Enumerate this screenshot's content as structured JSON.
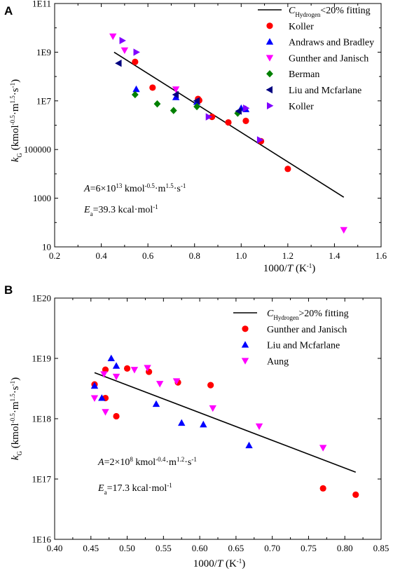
{
  "chart_data": [
    {
      "type": "scatter",
      "panel_label": "A",
      "xlim": [
        0.2,
        1.6
      ],
      "ylim": [
        10,
        100000000000.0
      ],
      "yscale": "log",
      "xticks": [
        "0.2",
        "0.4",
        "0.6",
        "0.8",
        "1.0",
        "1.2",
        "1.4",
        "1.6"
      ],
      "yticks": [
        "10",
        "1000",
        "100000",
        "1E7",
        "1E9",
        "1E11"
      ],
      "ytick_values": [
        10.0,
        1000.0,
        100000.0,
        10000000.0,
        1000000000.0,
        100000000000.0
      ],
      "xlabel": "1000/T (K⁻¹)",
      "ylabel": "kG (kmol-0.5·m1.5·s-1)",
      "legend": "top-right",
      "fit": {
        "name": "CHydrogen<20% fitting",
        "x": [
          0.455,
          1.44
        ],
        "y": [
          1000000000.0,
          1100.0
        ]
      },
      "series": [
        {
          "name": "Koller",
          "marker": "circle",
          "color": "#ff0000",
          "x": [
            0.545,
            0.62,
            0.815,
            0.82,
            0.875,
            0.945,
            1.02,
            1.085,
            1.2
          ],
          "y": [
            400000000.0,
            35000000.0,
            12000000.0,
            10500000.0,
            2200000.0,
            1300000.0,
            1500000.0,
            220000.0,
            16000.0
          ]
        },
        {
          "name": "Andraws and Bradley",
          "marker": "triangle-up",
          "color": "#0000ff",
          "x": [
            0.55,
            0.72,
            0.81,
            1.0,
            1.02
          ],
          "y": [
            30000000.0,
            14000000.0,
            9000000.0,
            5000000.0,
            4500000.0
          ]
        },
        {
          "name": "Gunther and Janisch",
          "marker": "triangle-down",
          "color": "#ff00ff",
          "x": [
            0.45,
            0.5,
            0.72,
            1.44
          ],
          "y": [
            4500000000.0,
            1200000000.0,
            30000000.0,
            50.0
          ]
        },
        {
          "name": "Berman",
          "marker": "diamond",
          "color": "#008000",
          "x": [
            0.545,
            0.64,
            0.71,
            0.81,
            0.985
          ],
          "y": [
            18000000.0,
            7500000.0,
            4000000.0,
            5800000.0,
            3100000.0
          ]
        },
        {
          "name": "Liu and Mcfarlane",
          "marker": "triangle-left",
          "color": "#000080",
          "x": [
            0.475,
            0.72,
            0.81,
            0.99
          ],
          "y": [
            350000000.0,
            18000000.0,
            10000000.0,
            3800000.0
          ]
        },
        {
          "name": "Koller",
          "marker": "triangle-right",
          "color": "#8000ff",
          "x": [
            0.49,
            0.55,
            0.86,
            1.02,
            1.08
          ],
          "y": [
            3000000000.0,
            1000000000.0,
            2200000.0,
            5000000.0,
            250000.0
          ]
        }
      ],
      "annotations": [
        {
          "label": "A",
          "parts": [
            {
              "t": "=6×10"
            },
            {
              "t": "13",
              "s": "sup"
            },
            {
              "t": " kmol"
            },
            {
              "t": "-0.5",
              "s": "sup"
            },
            {
              "t": "·m"
            },
            {
              "t": "1.5",
              "s": "sup"
            },
            {
              "t": "·s"
            },
            {
              "t": "-1",
              "s": "sup"
            }
          ]
        },
        {
          "label": "E",
          "sub": "a",
          "parts": [
            {
              "t": "=39.3 kcal·mol"
            },
            {
              "t": "-1",
              "s": "sup"
            }
          ]
        }
      ]
    },
    {
      "type": "scatter",
      "panel_label": "B",
      "xlim": [
        0.4,
        0.85
      ],
      "ylim": [
        1e+16,
        1e+20
      ],
      "yscale": "log",
      "xticks": [
        "0.40",
        "0.45",
        "0.50",
        "0.55",
        "0.60",
        "0.65",
        "0.70",
        "0.75",
        "0.80",
        "0.85"
      ],
      "yticks": [
        "1E16",
        "1E17",
        "1E18",
        "1E19",
        "1E20"
      ],
      "ytick_values": [
        1e+16,
        1e+17,
        1e+18,
        1e+19,
        1e+20
      ],
      "xlabel": "1000/T (K⁻¹)",
      "ylabel": "kG (kmol-0.5·m1.5·s-1)",
      "legend": "top-right",
      "fit": {
        "name": "CHydrogen>20% fitting",
        "x": [
          0.455,
          0.815
        ],
        "y": [
          5.8e+18,
          1.3e+17
        ]
      },
      "series": [
        {
          "name": "Gunther and Janisch",
          "marker": "circle",
          "color": "#ff0000",
          "x": [
            0.455,
            0.47,
            0.47,
            0.485,
            0.5,
            0.53,
            0.57,
            0.615,
            0.77,
            0.815
          ],
          "y": [
            3.7e+18,
            6.5e+18,
            2.2e+18,
            1.1e+18,
            6.8e+18,
            6e+18,
            4e+18,
            3.6e+18,
            7e+16,
            5.5e+16
          ]
        },
        {
          "name": "Liu and Mcfarlane",
          "marker": "triangle-up",
          "color": "#0000ff",
          "x": [
            0.455,
            0.465,
            0.478,
            0.485,
            0.54,
            0.575,
            0.605,
            0.668
          ],
          "y": [
            3.5e+18,
            2.2e+18,
            1e+19,
            7.5e+18,
            1.75e+18,
            8.5e+17,
            8e+17,
            3.6e+17
          ]
        },
        {
          "name": "Aung",
          "marker": "triangle-down",
          "color": "#ff00ff",
          "x": [
            0.455,
            0.468,
            0.47,
            0.485,
            0.51,
            0.528,
            0.545,
            0.568,
            0.618,
            0.682,
            0.77
          ],
          "y": [
            2.2e+18,
            5.5e+18,
            1.3e+18,
            5e+18,
            6.5e+18,
            7e+18,
            3.8e+18,
            4.2e+18,
            1.5e+18,
            7.5e+17,
            3.3e+17
          ]
        }
      ],
      "annotations": [
        {
          "label": "A",
          "parts": [
            {
              "t": "=2×10"
            },
            {
              "t": "8",
              "s": "sup"
            },
            {
              "t": " kmol"
            },
            {
              "t": "-0.4",
              "s": "sup"
            },
            {
              "t": "·m"
            },
            {
              "t": "1.2",
              "s": "sup"
            },
            {
              "t": "·s"
            },
            {
              "t": "-1",
              "s": "sup"
            }
          ]
        },
        {
          "label": "E",
          "sub": "a",
          "parts": [
            {
              "t": "=17.3 kcal·mol"
            },
            {
              "t": "-1",
              "s": "sup"
            }
          ]
        }
      ]
    }
  ]
}
